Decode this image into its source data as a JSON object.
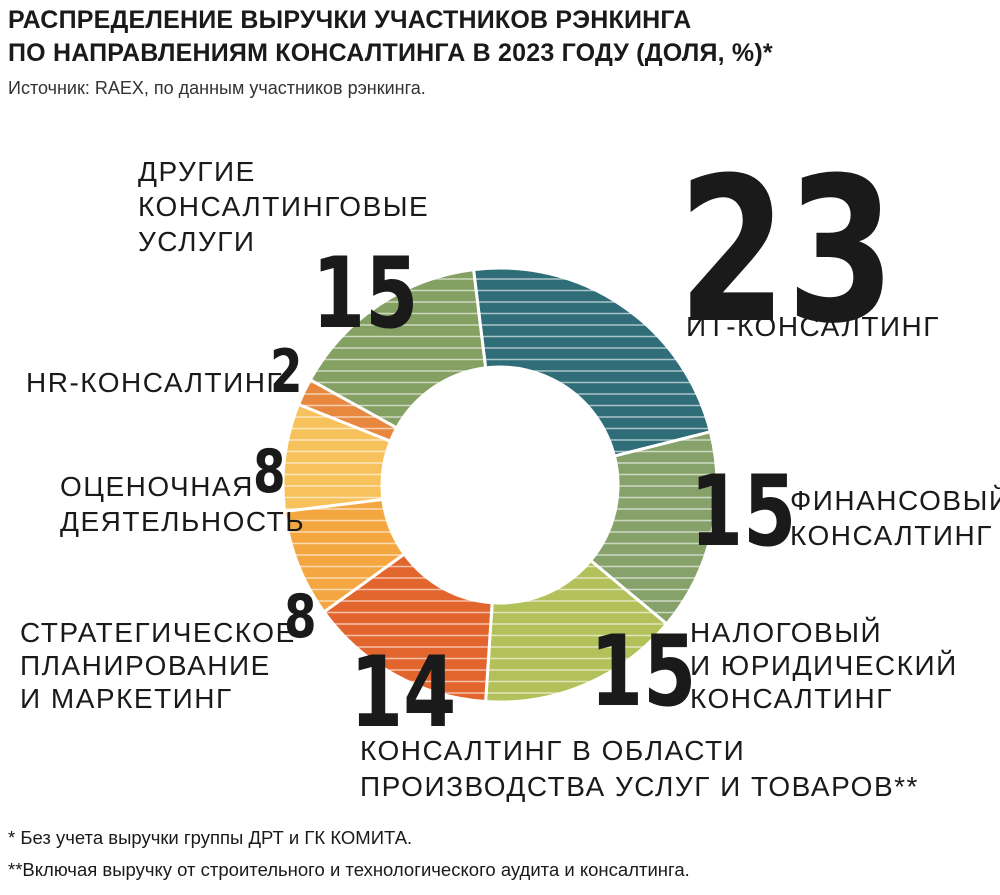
{
  "title_line1": "РАСПРЕДЕЛЕНИЕ ВЫРУЧКИ УЧАСТНИКОВ РЭНКИНГА",
  "title_line2": "ПО НАПРАВЛЕНИЯМ КОНСАЛТИНГА В 2023 ГОДУ (ДОЛЯ, %)*",
  "source": "Источник: RAEX, по данным участников рэнкинга.",
  "footnote1": "* Без учета выручки группы ДРТ и ГК КОМИТА.",
  "footnote2": "**Включая выручку от строительного и технологического аудита и консалтинга.",
  "chart_data": {
    "type": "pie",
    "donut": true,
    "unit": "%",
    "categories": [
      "ИТ-КОНСАЛТИНГ",
      "ФИНАНСОВЫЙ КОНСАЛТИНГ",
      "НАЛОГОВЫЙ И ЮРИДИЧЕСКИЙ КОНСАЛТИНГ",
      "КОНСАЛТИНГ В ОБЛАСТИ ПРОИЗВОДСТВА УСЛУГ И ТОВАРОВ**",
      "СТРАТЕГИЧЕСКОЕ ПЛАНИРОВАНИЕ И МАРКЕТИНГ",
      "ОЦЕНОЧНАЯ ДЕЯТЕЛЬНОСТЬ",
      "HR-КОНСАЛТИНГ",
      "ДРУГИЕ КОНСАЛТИНГОВЫЕ УСЛУГИ"
    ],
    "values": [
      23,
      15,
      15,
      14,
      8,
      8,
      2,
      15
    ],
    "colors": [
      "#2f6d78",
      "#86a16a",
      "#b3c15a",
      "#e3652e",
      "#f4a640",
      "#f7c15b",
      "#e8883f",
      "#84a063"
    ],
    "label_lines": [
      [
        "ИТ-КОНСАЛТИНГ"
      ],
      [
        "ФИНАНСОВЫЙ",
        "КОНСАЛТИНГ"
      ],
      [
        "НАЛОГОВЫЙ",
        "И ЮРИДИЧЕСКИЙ",
        "КОНСАЛТИНГ"
      ],
      [
        "КОНСАЛТИНГ В ОБЛАСТИ",
        "ПРОИЗВОДСТВА УСЛУГ И ТОВАРОВ**"
      ],
      [
        "СТРАТЕГИЧЕСКОЕ",
        "ПЛАНИРОВАНИЕ",
        "И МАРКЕТИНГ"
      ],
      [
        "ОЦЕНОЧНАЯ",
        "ДЕЯТЕЛЬНОСТЬ"
      ],
      [
        "HR-КОНСАЛТИНГ"
      ],
      [
        "ДРУГИЕ",
        "КОНСАЛТИНГОВЫЕ",
        "УСЛУГИ"
      ]
    ]
  }
}
